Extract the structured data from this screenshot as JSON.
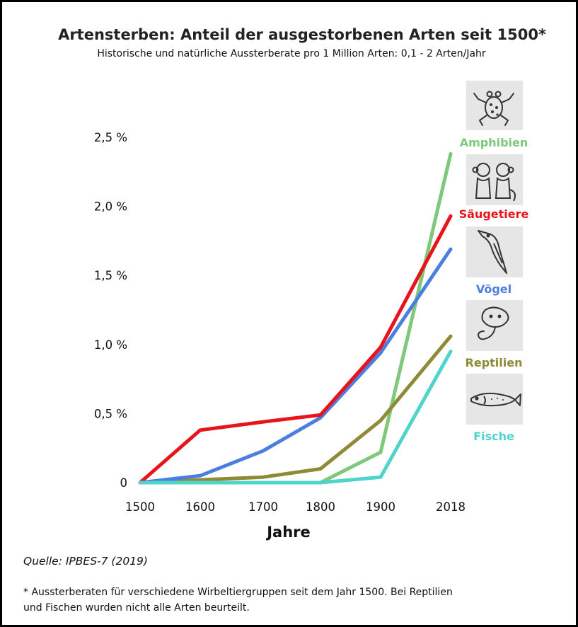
{
  "chart_data": {
    "type": "line",
    "title": "Artensterben: Anteil der ausgestorbenen Arten seit 1500*",
    "subtitle": "Historische und natürliche Aussterberate pro 1 Million Arten: 0,1 - 2 Arten/Jahr",
    "xlabel": "Jahre",
    "ylabel": "",
    "x": [
      1500,
      1600,
      1700,
      1800,
      1900,
      2018
    ],
    "x_tick_labels": [
      "1500",
      "1600",
      "1700",
      "1800",
      "1900",
      "2018"
    ],
    "y_ticks": [
      0,
      0.5,
      1.0,
      1.5,
      2.0,
      2.5
    ],
    "y_tick_labels": [
      "0",
      "0,5 %",
      "1,0 %",
      "1,5 %",
      "2,0 %",
      "2,5 %"
    ],
    "ylim": [
      0,
      2.5
    ],
    "unit": "%",
    "grid": false,
    "legend_position": "right",
    "series": [
      {
        "name": "Amphibien",
        "color": "#7ec87a",
        "icon": "frog-icon",
        "values": [
          0,
          0,
          0,
          0,
          0.22,
          2.38
        ]
      },
      {
        "name": "Säugetiere",
        "color": "#e8141c",
        "icon": "monkey-icon",
        "values": [
          0,
          0.38,
          0.44,
          0.49,
          0.98,
          1.93
        ]
      },
      {
        "name": "Vögel",
        "color": "#4a7fe0",
        "icon": "bird-icon",
        "values": [
          0,
          0.05,
          0.23,
          0.47,
          0.94,
          1.69
        ]
      },
      {
        "name": "Reptilien",
        "color": "#8f8a35",
        "icon": "stingray-icon",
        "values": [
          0,
          0.02,
          0.04,
          0.1,
          0.45,
          1.06
        ]
      },
      {
        "name": "Fische",
        "color": "#4fd4cc",
        "icon": "fish-icon",
        "values": [
          0,
          0,
          0,
          0,
          0.04,
          0.95
        ]
      }
    ]
  },
  "source": "Quelle: IPBES-7 (2019)",
  "footnote": "* Aussterberaten für verschiedene Wirbeltiergruppen seit dem Jahr 1500. Bei Reptilien und Fischen wurden nicht alle Arten beurteilt."
}
